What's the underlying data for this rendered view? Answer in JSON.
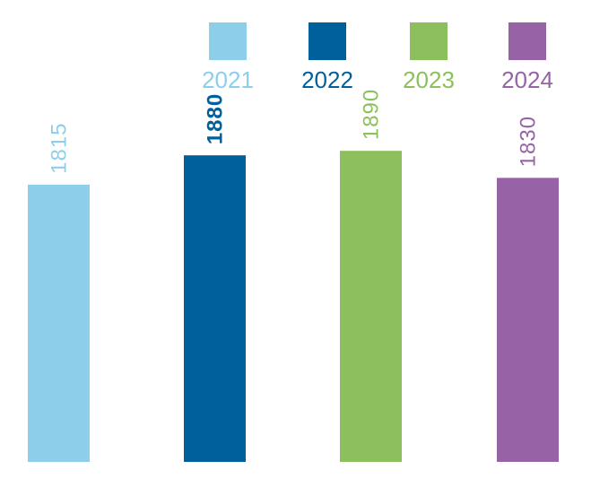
{
  "chart_data": {
    "type": "bar",
    "categories": [
      "2021",
      "2022",
      "2023",
      "2024"
    ],
    "values": [
      1815,
      1880,
      1890,
      1830
    ],
    "value_labels": [
      "1815",
      "1880",
      "1890",
      "1830"
    ],
    "colors": [
      "#8dcfea",
      "#00609c",
      "#8dc05c",
      "#9763a6"
    ],
    "legend": {
      "placement": "top-right",
      "entries": [
        "2021",
        "2022",
        "2023",
        "2024"
      ]
    },
    "label_weights": [
      "normal",
      "bold",
      "normal",
      "normal"
    ],
    "title": "",
    "xlabel": "",
    "ylabel": "",
    "ylim": [
      1200,
      1950
    ],
    "grid": false
  }
}
